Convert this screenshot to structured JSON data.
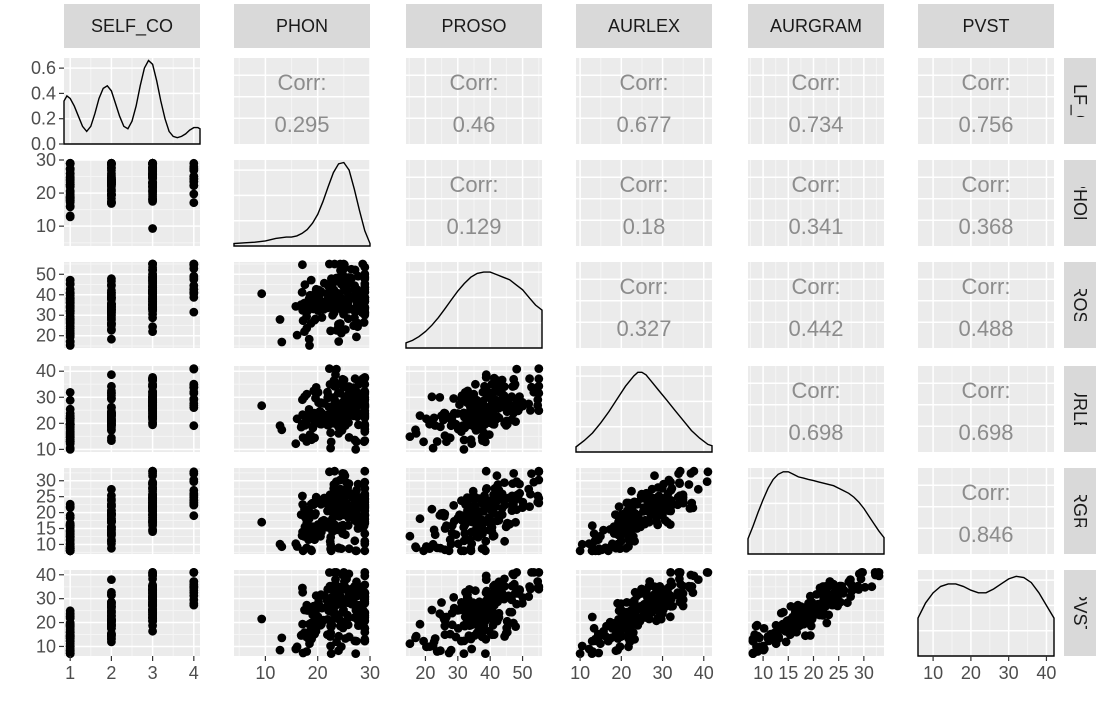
{
  "chart_data": {
    "type": "scatter-matrix",
    "variables": [
      "SELF_CO",
      "PHON",
      "PROSO",
      "AURLEX",
      "AURGRAM",
      "PVST"
    ],
    "colors": {
      "panel_bg": "#ebebeb",
      "grid_major": "#ffffff",
      "grid_minor": "#f5f5f5",
      "strip_bg": "#d9d9d9",
      "points": "#000000",
      "corr_text": "#8c8c8c",
      "tick_text": "#4d4d4d"
    },
    "corr_label": "Corr:",
    "right_strip_labels": [
      "SELF_CO",
      "PHON",
      "PROSO",
      "AURLEX",
      "AURGRAM",
      "PVST"
    ],
    "ranges": [
      [
        0.85,
        4.15
      ],
      [
        4,
        30
      ],
      [
        14,
        56
      ],
      [
        9,
        42
      ],
      [
        7,
        34
      ],
      [
        6,
        42
      ]
    ],
    "ticks": [
      [
        "1",
        "2",
        "3",
        "4"
      ],
      [
        "10",
        "20",
        "30"
      ],
      [
        "20",
        "30",
        "40",
        "50"
      ],
      [
        "10",
        "20",
        "30",
        "40"
      ],
      [
        "10",
        "15",
        "20",
        "25",
        "30"
      ],
      [
        "10",
        "20",
        "30",
        "40"
      ]
    ],
    "tick_values": [
      [
        1,
        2,
        3,
        4
      ],
      [
        10,
        20,
        30
      ],
      [
        20,
        30,
        40,
        50
      ],
      [
        10,
        20,
        30,
        40
      ],
      [
        10,
        15,
        20,
        25,
        30
      ],
      [
        10,
        20,
        30,
        40
      ]
    ],
    "density_ylim": [
      0,
      0.68
    ],
    "density_y_ticks": [
      "0.0",
      "0.2",
      "0.4",
      "0.6"
    ],
    "density_y_tick_values": [
      0,
      0.2,
      0.4,
      0.6
    ],
    "correlations": [
      {
        "row": "SELF_CO",
        "col": "PHON",
        "value": "0.295"
      },
      {
        "row": "SELF_CO",
        "col": "PROSO",
        "value": "0.46"
      },
      {
        "row": "SELF_CO",
        "col": "AURLEX",
        "value": "0.677"
      },
      {
        "row": "SELF_CO",
        "col": "AURGRAM",
        "value": "0.734"
      },
      {
        "row": "SELF_CO",
        "col": "PVST",
        "value": "0.756"
      },
      {
        "row": "PHON",
        "col": "PROSO",
        "value": "0.129"
      },
      {
        "row": "PHON",
        "col": "AURLEX",
        "value": "0.18"
      },
      {
        "row": "PHON",
        "col": "AURGRAM",
        "value": "0.341"
      },
      {
        "row": "PHON",
        "col": "PVST",
        "value": "0.368"
      },
      {
        "row": "PROSO",
        "col": "AURLEX",
        "value": "0.327"
      },
      {
        "row": "PROSO",
        "col": "AURGRAM",
        "value": "0.442"
      },
      {
        "row": "PROSO",
        "col": "PVST",
        "value": "0.488"
      },
      {
        "row": "AURLEX",
        "col": "AURGRAM",
        "value": "0.698"
      },
      {
        "row": "AURLEX",
        "col": "PVST",
        "value": "0.698"
      },
      {
        "row": "AURGRAM",
        "col": "PVST",
        "value": "0.846"
      }
    ],
    "densities": [
      {
        "var": "SELF_CO",
        "x": [
          0.85,
          0.92,
          1.0,
          1.1,
          1.2,
          1.3,
          1.4,
          1.5,
          1.6,
          1.7,
          1.8,
          1.9,
          2.0,
          2.1,
          2.2,
          2.3,
          2.4,
          2.5,
          2.6,
          2.7,
          2.8,
          2.9,
          3.0,
          3.1,
          3.2,
          3.3,
          3.4,
          3.5,
          3.6,
          3.7,
          3.8,
          3.9,
          4.0,
          4.1,
          4.15
        ],
        "y": [
          0.34,
          0.38,
          0.36,
          0.3,
          0.22,
          0.14,
          0.1,
          0.14,
          0.24,
          0.36,
          0.44,
          0.46,
          0.42,
          0.32,
          0.22,
          0.14,
          0.12,
          0.18,
          0.3,
          0.46,
          0.6,
          0.66,
          0.63,
          0.5,
          0.34,
          0.2,
          0.1,
          0.06,
          0.05,
          0.06,
          0.08,
          0.11,
          0.13,
          0.13,
          0.12
        ]
      },
      {
        "var": "PHON",
        "x": [
          4,
          6,
          8,
          10,
          12,
          14,
          15,
          16,
          17,
          18,
          19,
          20,
          21,
          22,
          23,
          24,
          25,
          26,
          27,
          28,
          29,
          30
        ],
        "y": [
          0.02,
          0.025,
          0.03,
          0.04,
          0.06,
          0.07,
          0.07,
          0.08,
          0.1,
          0.13,
          0.18,
          0.25,
          0.35,
          0.47,
          0.58,
          0.65,
          0.66,
          0.6,
          0.45,
          0.28,
          0.12,
          0.02
        ]
      },
      {
        "var": "PROSO",
        "x": [
          14,
          16,
          18,
          20,
          22,
          24,
          26,
          28,
          30,
          32,
          34,
          36,
          38,
          40,
          42,
          44,
          46,
          48,
          50,
          52,
          54,
          56
        ],
        "y": [
          0.04,
          0.06,
          0.09,
          0.13,
          0.18,
          0.24,
          0.31,
          0.38,
          0.45,
          0.51,
          0.56,
          0.59,
          0.6,
          0.6,
          0.58,
          0.56,
          0.54,
          0.5,
          0.46,
          0.4,
          0.34,
          0.3
        ]
      },
      {
        "var": "AURLEX",
        "x": [
          9,
          11,
          13,
          15,
          17,
          19,
          21,
          23,
          24,
          25,
          26,
          27,
          29,
          31,
          33,
          35,
          37,
          39,
          41,
          42
        ],
        "y": [
          0.04,
          0.09,
          0.15,
          0.23,
          0.32,
          0.42,
          0.52,
          0.6,
          0.63,
          0.63,
          0.61,
          0.57,
          0.49,
          0.41,
          0.33,
          0.25,
          0.17,
          0.11,
          0.06,
          0.05
        ]
      },
      {
        "var": "AURGRAM",
        "x": [
          7,
          8,
          9,
          10,
          11,
          12,
          13,
          14,
          15,
          16,
          17,
          18,
          19,
          20,
          21,
          22,
          23,
          24,
          25,
          26,
          27,
          28,
          29,
          30,
          31,
          32,
          33,
          34
        ],
        "y": [
          0.12,
          0.22,
          0.33,
          0.43,
          0.52,
          0.59,
          0.63,
          0.65,
          0.65,
          0.63,
          0.61,
          0.6,
          0.59,
          0.58,
          0.57,
          0.56,
          0.55,
          0.54,
          0.52,
          0.5,
          0.48,
          0.45,
          0.41,
          0.36,
          0.3,
          0.24,
          0.18,
          0.13
        ]
      },
      {
        "var": "PVST",
        "x": [
          6,
          8,
          10,
          12,
          14,
          16,
          18,
          20,
          22,
          24,
          26,
          28,
          30,
          32,
          34,
          36,
          38,
          40,
          42
        ],
        "y": [
          0.3,
          0.42,
          0.5,
          0.55,
          0.57,
          0.57,
          0.55,
          0.52,
          0.5,
          0.5,
          0.53,
          0.57,
          0.61,
          0.63,
          0.62,
          0.58,
          0.5,
          0.4,
          0.3
        ]
      }
    ]
  }
}
